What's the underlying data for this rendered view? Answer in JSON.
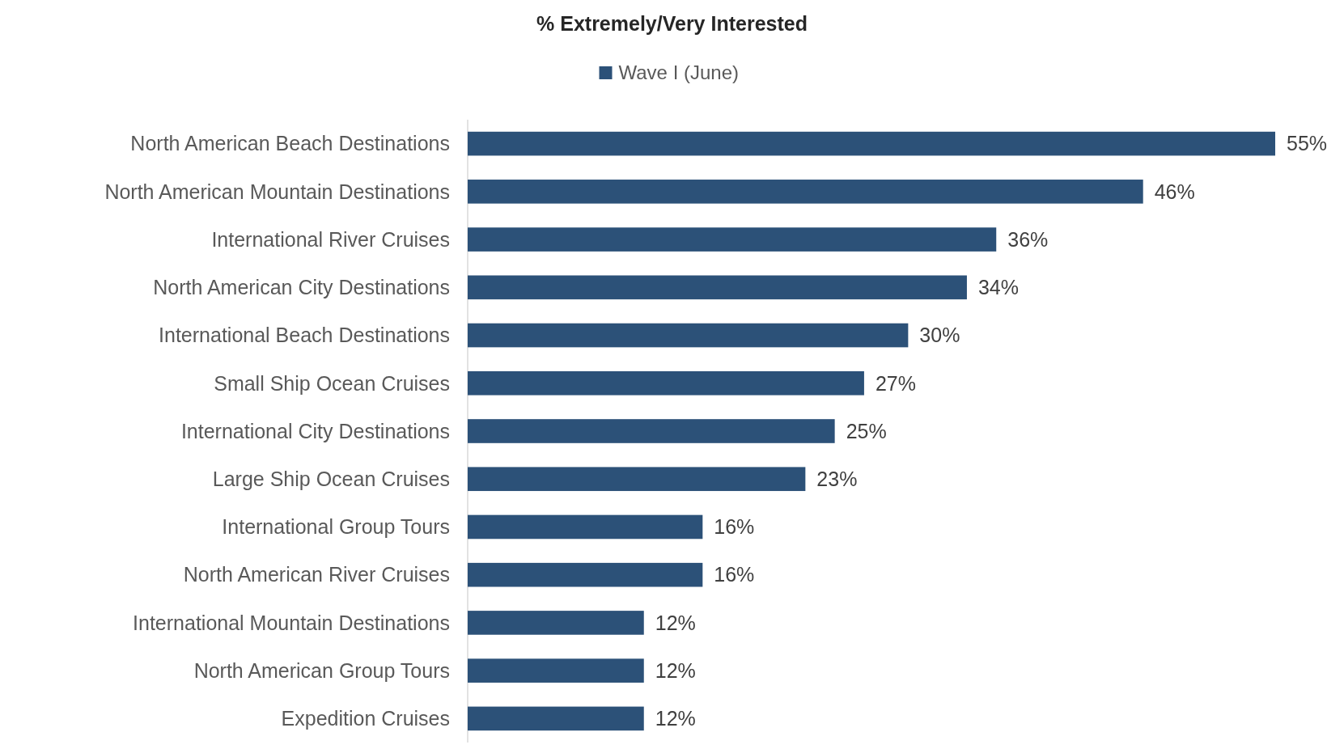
{
  "chart_data": {
    "type": "bar",
    "orientation": "horizontal",
    "title": "% Extremely/Very Interested",
    "categories": [
      "North American Beach Destinations",
      "North American Mountain Destinations",
      "International River Cruises",
      "North American City Destinations",
      "International Beach Destinations",
      "Small Ship Ocean Cruises",
      "International City Destinations",
      "Large Ship Ocean Cruises",
      "International Group Tours",
      "North American River Cruises",
      "International Mountain Destinations",
      "North American Group Tours",
      "Expedition Cruises"
    ],
    "series": [
      {
        "name": "Wave I (June)",
        "color": "#2c5178",
        "values": [
          55,
          46,
          36,
          34,
          30,
          27,
          25,
          23,
          16,
          16,
          12,
          12,
          12
        ],
        "value_labels": [
          "55%",
          "46%",
          "36%",
          "34%",
          "30%",
          "27%",
          "25%",
          "23%",
          "16%",
          "16%",
          "12%",
          "12%",
          "12%"
        ]
      }
    ],
    "legend": "top",
    "grid": false
  }
}
